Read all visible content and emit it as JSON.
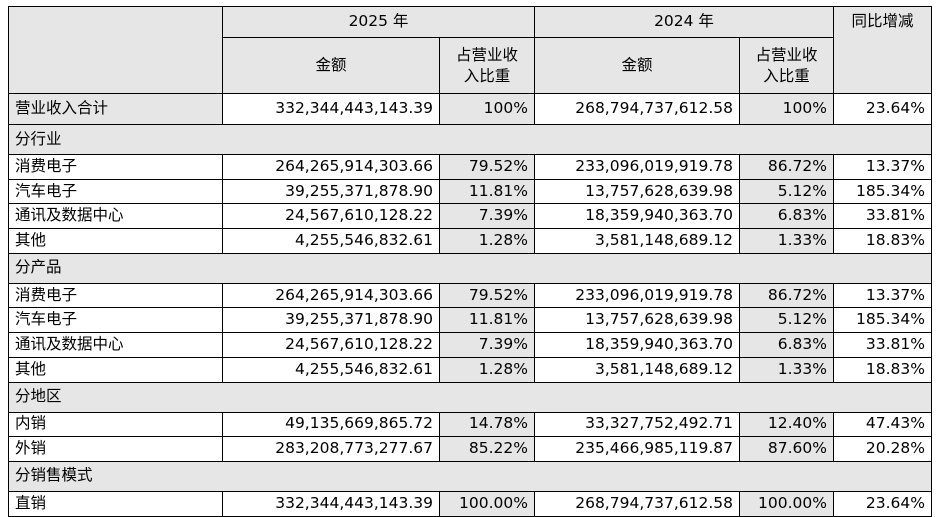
{
  "headers": {
    "year_2025": "2025 年",
    "year_2024": "2024 年",
    "amount": "金额",
    "share_of_revenue": "占营业收入比重",
    "yoy_change": "同比增减"
  },
  "total": {
    "label": "营业收入合计",
    "amount_2025": "332,344,443,143.39",
    "share_2025": "100%",
    "amount_2024": "268,794,737,612.58",
    "share_2024": "100%",
    "yoy": "23.64%"
  },
  "sections": [
    {
      "title": "分行业",
      "rows": [
        {
          "label": "消费电子",
          "amount_2025": "264,265,914,303.66",
          "share_2025": "79.52%",
          "amount_2024": "233,096,019,919.78",
          "share_2024": "86.72%",
          "yoy": "13.37%"
        },
        {
          "label": "汽车电子",
          "amount_2025": "39,255,371,878.90",
          "share_2025": "11.81%",
          "amount_2024": "13,757,628,639.98",
          "share_2024": "5.12%",
          "yoy": "185.34%"
        },
        {
          "label": "通讯及数据中心",
          "amount_2025": "24,567,610,128.22",
          "share_2025": "7.39%",
          "amount_2024": "18,359,940,363.70",
          "share_2024": "6.83%",
          "yoy": "33.81%"
        },
        {
          "label": "其他",
          "amount_2025": "4,255,546,832.61",
          "share_2025": "1.28%",
          "amount_2024": "3,581,148,689.12",
          "share_2024": "1.33%",
          "yoy": "18.83%"
        }
      ]
    },
    {
      "title": "分产品",
      "rows": [
        {
          "label": "消费电子",
          "amount_2025": "264,265,914,303.66",
          "share_2025": "79.52%",
          "amount_2024": "233,096,019,919.78",
          "share_2024": "86.72%",
          "yoy": "13.37%"
        },
        {
          "label": "汽车电子",
          "amount_2025": "39,255,371,878.90",
          "share_2025": "11.81%",
          "amount_2024": "13,757,628,639.98",
          "share_2024": "5.12%",
          "yoy": "185.34%"
        },
        {
          "label": "通讯及数据中心",
          "amount_2025": "24,567,610,128.22",
          "share_2025": "7.39%",
          "amount_2024": "18,359,940,363.70",
          "share_2024": "6.83%",
          "yoy": "33.81%"
        },
        {
          "label": "其他",
          "amount_2025": "4,255,546,832.61",
          "share_2025": "1.28%",
          "amount_2024": "3,581,148,689.12",
          "share_2024": "1.33%",
          "yoy": "18.83%"
        }
      ]
    },
    {
      "title": "分地区",
      "rows": [
        {
          "label": "内销",
          "amount_2025": "49,135,669,865.72",
          "share_2025": "14.78%",
          "amount_2024": "33,327,752,492.71",
          "share_2024": "12.40%",
          "yoy": "47.43%"
        },
        {
          "label": "外销",
          "amount_2025": "283,208,773,277.67",
          "share_2025": "85.22%",
          "amount_2024": "235,466,985,119.87",
          "share_2024": "87.60%",
          "yoy": "20.28%"
        }
      ]
    },
    {
      "title": "分销售模式",
      "rows": [
        {
          "label": "直销",
          "amount_2025": "332,344,443,143.39",
          "share_2025": "100.00%",
          "amount_2024": "268,794,737,612.58",
          "share_2024": "100.00%",
          "yoy": "23.64%"
        }
      ]
    }
  ]
}
